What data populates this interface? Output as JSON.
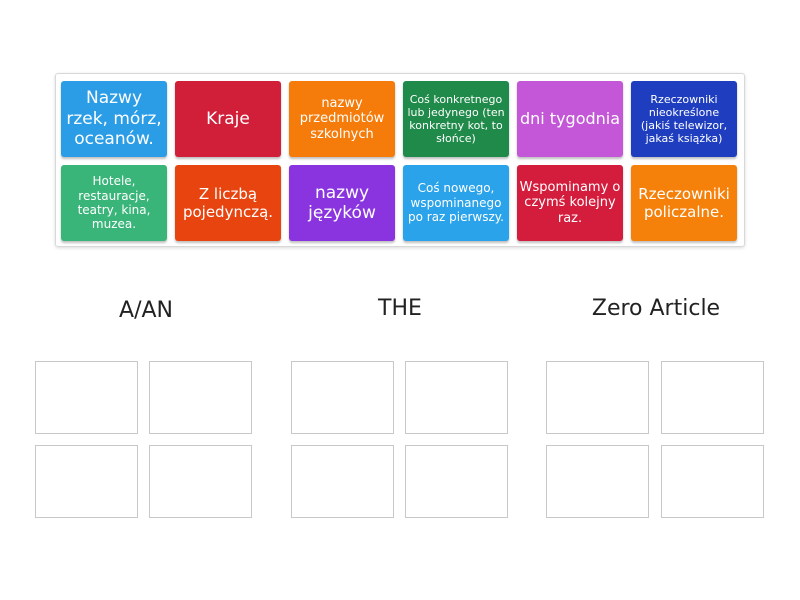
{
  "tiles": [
    {
      "label": "Nazwy rzek, mórz, oceanów.",
      "color": "#2b9de6",
      "size": 17
    },
    {
      "label": "Kraje",
      "color": "#d11f3a",
      "size": 17
    },
    {
      "label": "nazwy przedmiotów szkolnych",
      "color": "#f57c0a",
      "size": 13
    },
    {
      "label": "Coś konkretnego lub jedynego (ten konkretny kot, to słońce)",
      "color": "#1f8a4a",
      "size": 11
    },
    {
      "label": "dni tygodnia",
      "color": "#c456d8",
      "size": 16
    },
    {
      "label": "Rzeczowniki nieokreślone (jakiś telewizor, jakaś książka)",
      "color": "#1f3ebf",
      "size": 11
    },
    {
      "label": "Hotele, restauracje, teatry, kina, muzea.",
      "color": "#3ab57a",
      "size": 12
    },
    {
      "label": "Z liczbą pojedynczą.",
      "color": "#e8440f",
      "size": 15
    },
    {
      "label": "nazwy języków",
      "color": "#8a34e0",
      "size": 17
    },
    {
      "label": "Coś nowego, wspominanego po raz pierwszy.",
      "color": "#2aa3ea",
      "size": 12
    },
    {
      "label": "Wspominamy o czymś kolejny raz.",
      "color": "#d41c3c",
      "size": 13
    },
    {
      "label": "Rzeczowniki policzalne.",
      "color": "#f5800a",
      "size": 15
    }
  ],
  "groups": [
    {
      "title": "A/AN"
    },
    {
      "title": "THE"
    },
    {
      "title": "Zero Article"
    }
  ]
}
